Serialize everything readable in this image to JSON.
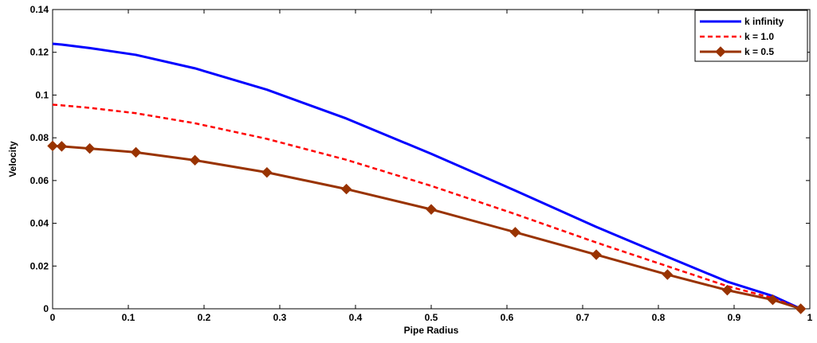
{
  "chart_data": {
    "type": "line",
    "title": "",
    "xlabel": "Pipe Radius",
    "ylabel": "Velocity",
    "xlim": [
      0,
      1
    ],
    "ylim": [
      0,
      0.14
    ],
    "xticks": [
      0,
      0.1,
      0.2,
      0.3,
      0.4,
      0.5,
      0.6,
      0.7,
      0.8,
      0.9,
      1
    ],
    "xtick_labels": [
      "0",
      "0.1",
      "0.2",
      "0.3",
      "0.4",
      "0.5",
      "0.6",
      "0.7",
      "0.8",
      "0.9",
      "1"
    ],
    "yticks": [
      0,
      0.02,
      0.04,
      0.06,
      0.08,
      0.1,
      0.12,
      0.14
    ],
    "ytick_labels": [
      "0",
      "0.02",
      "0.04",
      "0.06",
      "0.08",
      "0.1",
      "0.12",
      "0.14"
    ],
    "grid": false,
    "legend_position": "top-right",
    "series": [
      {
        "name": "k   infinity",
        "color": "#0000ff",
        "style": "solid",
        "marker": "none",
        "x": [
          0,
          0.012,
          0.049,
          0.11,
          0.188,
          0.283,
          0.388,
          0.5,
          0.611,
          0.718,
          0.812,
          0.891,
          0.951,
          0.988
        ],
        "y": [
          0.124,
          0.1236,
          0.122,
          0.1188,
          0.1125,
          0.1025,
          0.089,
          0.0725,
          0.0553,
          0.0383,
          0.0243,
          0.0127,
          0.006,
          0
        ]
      },
      {
        "name": "k = 1.0",
        "color": "#ff0000",
        "style": "dashed",
        "marker": "none",
        "x": [
          0,
          0.012,
          0.049,
          0.11,
          0.188,
          0.283,
          0.388,
          0.5,
          0.611,
          0.718,
          0.812,
          0.891,
          0.951,
          0.988
        ],
        "y": [
          0.0955,
          0.0952,
          0.094,
          0.0915,
          0.0868,
          0.0795,
          0.0697,
          0.0575,
          0.0443,
          0.031,
          0.0199,
          0.0106,
          0.005,
          0
        ]
      },
      {
        "name": "k = 0.5",
        "color": "#993300",
        "style": "solid",
        "marker": "diamond",
        "x": [
          0,
          0.012,
          0.049,
          0.11,
          0.188,
          0.283,
          0.388,
          0.5,
          0.611,
          0.718,
          0.812,
          0.891,
          0.951,
          0.988
        ],
        "y": [
          0.0762,
          0.076,
          0.075,
          0.0732,
          0.0695,
          0.0638,
          0.056,
          0.0465,
          0.0358,
          0.0253,
          0.016,
          0.0087,
          0.0042,
          0
        ]
      }
    ]
  }
}
